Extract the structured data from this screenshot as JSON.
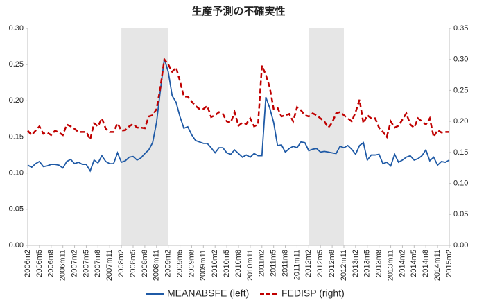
{
  "chart_data": {
    "type": "line",
    "title": "生産予測の不確実性",
    "categories": [
      "2006m2",
      null,
      null,
      "2006m5",
      null,
      null,
      "2006m8",
      null,
      null,
      "2006m11",
      null,
      null,
      "2007m2",
      null,
      null,
      "2007m5",
      null,
      null,
      "2007m8",
      null,
      null,
      "2007m11",
      null,
      null,
      "2008m2",
      null,
      null,
      "2008m5",
      null,
      null,
      "2008m8",
      null,
      null,
      "2008m11",
      null,
      null,
      "2009m2",
      null,
      null,
      "2009m5",
      null,
      null,
      "2009m8",
      null,
      null,
      "2009m11",
      null,
      null,
      "2010m2",
      null,
      null,
      "2010m5",
      null,
      null,
      "2010m8",
      null,
      null,
      "2010m11",
      null,
      null,
      "2011m2",
      null,
      null,
      "2011m5",
      null,
      null,
      "2011m8",
      null,
      null,
      "2011m11",
      null,
      null,
      "2012m2",
      null,
      null,
      "2012m5",
      null,
      null,
      "2012m8",
      null,
      null,
      "2012m11",
      null,
      null,
      "2013m2",
      null,
      null,
      "2013m5",
      null,
      null,
      "2013m8",
      null,
      null,
      "2013m11",
      null,
      null,
      "2014m2",
      null,
      null,
      "2014m5",
      null,
      null,
      "2014m8",
      null,
      null,
      "2014m11",
      null,
      null,
      "2015m2"
    ],
    "series": [
      {
        "name": "MEANABSFE (left)",
        "color": "#1f5aa6",
        "dash": false,
        "values": [
          0.111,
          0.108,
          0.113,
          0.116,
          0.109,
          0.11,
          0.112,
          0.112,
          0.111,
          0.107,
          0.116,
          0.119,
          0.113,
          0.115,
          0.112,
          0.112,
          0.103,
          0.118,
          0.114,
          0.124,
          0.116,
          0.113,
          0.113,
          0.128,
          0.115,
          0.117,
          0.122,
          0.123,
          0.118,
          0.121,
          0.127,
          0.132,
          0.142,
          0.17,
          0.215,
          0.258,
          0.24,
          0.207,
          0.198,
          0.178,
          0.162,
          0.164,
          0.153,
          0.145,
          0.143,
          0.141,
          0.141,
          0.135,
          0.128,
          0.135,
          0.135,
          0.128,
          0.126,
          0.132,
          0.127,
          0.122,
          0.125,
          0.122,
          0.127,
          0.124,
          0.124,
          0.205,
          0.19,
          0.17,
          0.138,
          0.139,
          0.129,
          0.134,
          0.137,
          0.135,
          0.143,
          0.142,
          0.131,
          0.133,
          0.134,
          0.129,
          0.13,
          0.129,
          0.128,
          0.127,
          0.137,
          0.135,
          0.138,
          0.133,
          0.126,
          0.138,
          0.142,
          0.118,
          0.125,
          0.125,
          0.126,
          0.113,
          0.115,
          0.11,
          0.126,
          0.115,
          0.118,
          0.122,
          0.124,
          0.118,
          0.12,
          0.124,
          0.132,
          0.117,
          0.122,
          0.111,
          0.116,
          0.115,
          0.118
        ]
      },
      {
        "name": "FEDISP (right)",
        "color": "#c00000",
        "dash": true,
        "axis": "y2",
        "values": [
          0.185,
          0.178,
          0.185,
          0.192,
          0.18,
          0.182,
          0.178,
          0.185,
          0.182,
          0.178,
          0.195,
          0.192,
          0.188,
          0.183,
          0.183,
          0.183,
          0.171,
          0.197,
          0.192,
          0.205,
          0.188,
          0.183,
          0.183,
          0.197,
          0.185,
          0.186,
          0.192,
          0.196,
          0.19,
          0.19,
          0.189,
          0.208,
          0.21,
          0.22,
          0.255,
          0.3,
          0.292,
          0.28,
          0.287,
          0.265,
          0.24,
          0.24,
          0.232,
          0.225,
          0.22,
          0.22,
          0.225,
          0.207,
          0.21,
          0.215,
          0.212,
          0.2,
          0.198,
          0.215,
          0.193,
          0.198,
          0.196,
          0.205,
          0.192,
          0.195,
          0.29,
          0.275,
          0.255,
          0.22,
          0.222,
          0.208,
          0.21,
          0.212,
          0.2,
          0.223,
          0.218,
          0.21,
          0.208,
          0.213,
          0.21,
          0.205,
          0.2,
          0.19,
          0.198,
          0.213,
          0.215,
          0.21,
          0.205,
          0.2,
          0.215,
          0.235,
          0.197,
          0.21,
          0.205,
          0.205,
          0.19,
          0.183,
          0.175,
          0.2,
          0.19,
          0.193,
          0.203,
          0.213,
          0.195,
          0.19,
          0.205,
          0.2,
          0.195,
          0.205,
          0.175,
          0.186,
          0.182,
          0.183,
          0.183
        ]
      }
    ],
    "shaded": [
      {
        "from": "2008m2",
        "to": "2009m2"
      },
      {
        "from": "2012m2",
        "to": "2012m11"
      }
    ],
    "shade_color": "#e6e6e6",
    "ylim": [
      0,
      0.3
    ],
    "yticks": [
      {
        "value": 0,
        "label": "0.00"
      },
      {
        "value": 0.05,
        "label": "0.05"
      },
      {
        "value": 0.1,
        "label": "0.10"
      },
      {
        "value": 0.15,
        "label": "0.15"
      },
      {
        "value": 0.2,
        "label": "0.20"
      },
      {
        "value": 0.25,
        "label": "0.25"
      },
      {
        "value": 0.3,
        "label": "0.30"
      }
    ],
    "y2lim": [
      0,
      0.35
    ],
    "y2ticks": [
      {
        "value": 0,
        "label": "0.00"
      },
      {
        "value": 0.05,
        "label": "0.05"
      },
      {
        "value": 0.1,
        "label": "0.10"
      },
      {
        "value": 0.15,
        "label": "0.15"
      },
      {
        "value": 0.2,
        "label": "0.20"
      },
      {
        "value": 0.25,
        "label": "0.25"
      },
      {
        "value": 0.3,
        "label": "0.30"
      },
      {
        "value": 0.35,
        "label": "0.35"
      }
    ],
    "legend": "bottom"
  }
}
